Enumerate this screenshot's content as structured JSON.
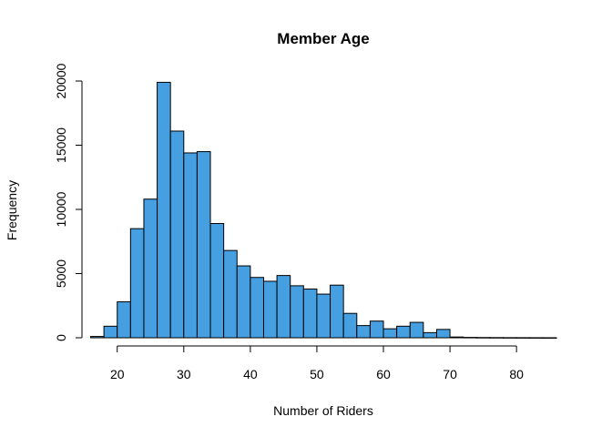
{
  "chart_data": {
    "type": "bar",
    "title": "Member Age",
    "xlabel": "Number of Riders",
    "ylabel": "Frequency",
    "bar_color": "#459fe0",
    "bin_width": 2,
    "xlim": [
      16,
      86
    ],
    "ylim": [
      0,
      20000
    ],
    "x_ticks": [
      20,
      30,
      40,
      50,
      60,
      70,
      80
    ],
    "y_ticks": [
      0,
      5000,
      10000,
      15000,
      20000
    ],
    "grid": false,
    "bins": [
      {
        "start": 16,
        "value": 100
      },
      {
        "start": 18,
        "value": 900
      },
      {
        "start": 20,
        "value": 2800
      },
      {
        "start": 22,
        "value": 8500
      },
      {
        "start": 24,
        "value": 10800
      },
      {
        "start": 26,
        "value": 19900
      },
      {
        "start": 28,
        "value": 16100
      },
      {
        "start": 30,
        "value": 14400
      },
      {
        "start": 32,
        "value": 14500
      },
      {
        "start": 34,
        "value": 8900
      },
      {
        "start": 36,
        "value": 6800
      },
      {
        "start": 38,
        "value": 5600
      },
      {
        "start": 40,
        "value": 4700
      },
      {
        "start": 42,
        "value": 4400
      },
      {
        "start": 44,
        "value": 4850
      },
      {
        "start": 46,
        "value": 4050
      },
      {
        "start": 48,
        "value": 3800
      },
      {
        "start": 50,
        "value": 3400
      },
      {
        "start": 52,
        "value": 4100
      },
      {
        "start": 54,
        "value": 1900
      },
      {
        "start": 56,
        "value": 950
      },
      {
        "start": 58,
        "value": 1300
      },
      {
        "start": 60,
        "value": 700
      },
      {
        "start": 62,
        "value": 900
      },
      {
        "start": 64,
        "value": 1200
      },
      {
        "start": 66,
        "value": 400
      },
      {
        "start": 68,
        "value": 650
      },
      {
        "start": 70,
        "value": 60
      },
      {
        "start": 72,
        "value": 30
      },
      {
        "start": 74,
        "value": 20
      },
      {
        "start": 76,
        "value": 15
      },
      {
        "start": 78,
        "value": 10
      },
      {
        "start": 80,
        "value": 8
      },
      {
        "start": 82,
        "value": 5
      },
      {
        "start": 84,
        "value": 3
      }
    ]
  }
}
